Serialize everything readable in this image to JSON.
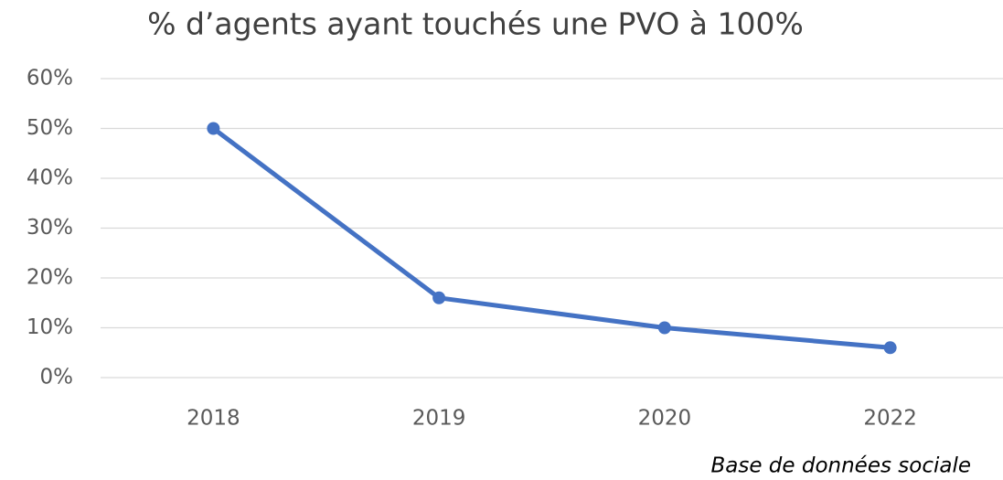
{
  "chart_data": {
    "type": "line",
    "title": "% d’agents ayant touchés une PVO à 100%",
    "categories": [
      "2018",
      "2019",
      "2020",
      "2022"
    ],
    "series": [
      {
        "name": null,
        "color": "#4472c4",
        "values": [
          50,
          16,
          10,
          6
        ]
      }
    ],
    "ylim": [
      0,
      60
    ],
    "yticks": [
      {
        "value": 0,
        "label": "0%"
      },
      {
        "value": 10,
        "label": "10%"
      },
      {
        "value": 20,
        "label": "20%"
      },
      {
        "value": 30,
        "label": "30%"
      },
      {
        "value": 40,
        "label": "40%"
      },
      {
        "value": 50,
        "label": "50%"
      },
      {
        "value": 60,
        "label": "60%"
      }
    ],
    "grid": true,
    "annotation": "Base de données sociale"
  }
}
